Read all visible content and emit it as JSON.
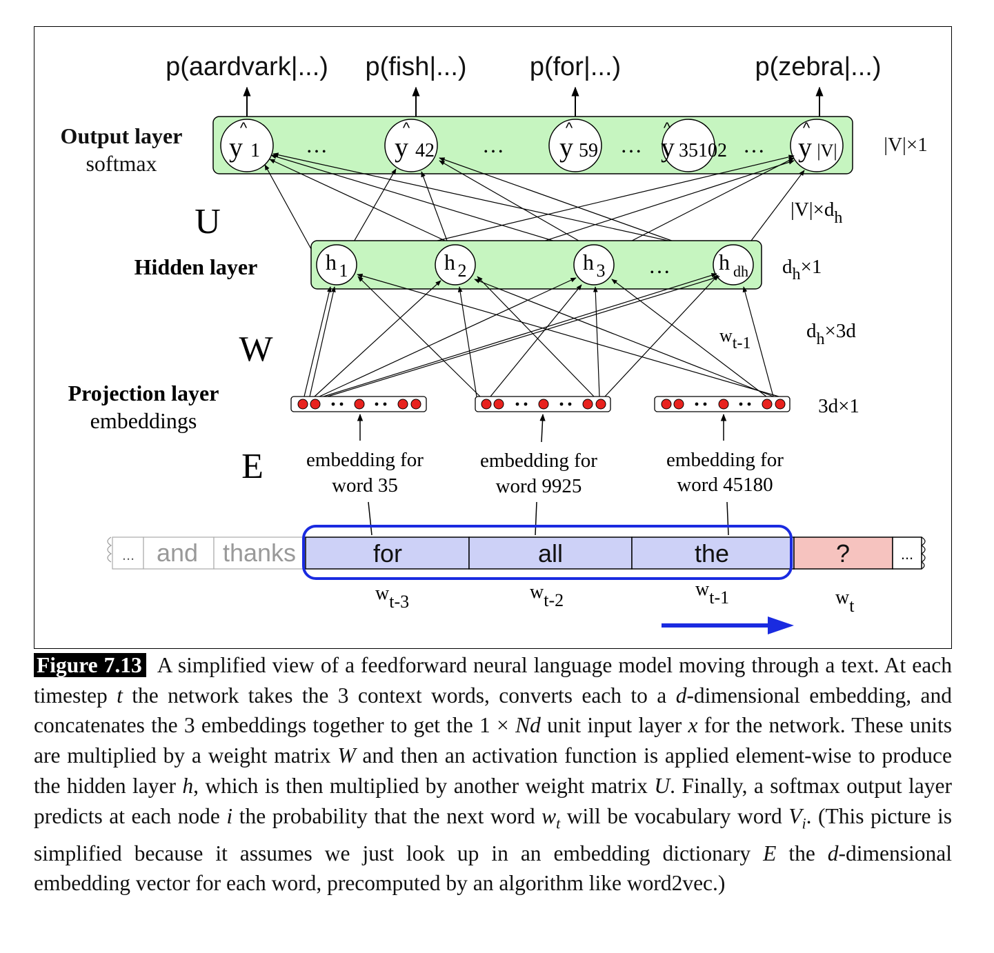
{
  "diagram": {
    "output_probs": [
      "p(aardvark|...)",
      "p(fish|...)",
      "p(for|...)",
      "p(zebra|...)"
    ],
    "output_layer": {
      "label": "Output layer",
      "sublabel": "softmax",
      "dim": "|V|×1",
      "nodes": [
        {
          "hat": "^",
          "base": "y",
          "sub": "1"
        },
        {
          "hat": "^",
          "base": "y",
          "sub": "42"
        },
        {
          "hat": "^",
          "base": "y",
          "sub": "59"
        },
        {
          "hat": "^",
          "base": "y",
          "sub": "35102"
        },
        {
          "hat": "^",
          "base": "y",
          "sub": "|V|"
        }
      ]
    },
    "U_matrix": {
      "letter": "U",
      "dim_base": "|V|×d",
      "dim_sub": "h"
    },
    "hidden_layer": {
      "label": "Hidden layer",
      "dim_base": "d",
      "dim_sub": "h",
      "dim_rest": "×1",
      "nodes": [
        {
          "base": "h",
          "sub": "1"
        },
        {
          "base": "h",
          "sub": "2"
        },
        {
          "base": "h",
          "sub": "3"
        },
        {
          "base": "h",
          "sub": "dh"
        }
      ]
    },
    "W_matrix": {
      "letter": "W",
      "dim_base": "d",
      "dim_sub": "h",
      "dim_rest": "×3d",
      "wt_base": "w",
      "wt_sub": "t-1"
    },
    "projection_layer": {
      "label": "Projection layer",
      "sublabel": "embeddings",
      "dim": "3d×1"
    },
    "E_matrix": {
      "letter": "E"
    },
    "embeddings": [
      {
        "line1": "embedding for",
        "line2": "word 35"
      },
      {
        "line1": "embedding for",
        "line2": "word 9925"
      },
      {
        "line1": "embedding for",
        "line2": "word 45180"
      }
    ],
    "dots": "…",
    "ellipsis": "...",
    "sequence": {
      "left_words": [
        "...",
        "and",
        "thanks"
      ],
      "context_words": [
        "for",
        "all",
        "the"
      ],
      "target": "?",
      "right_ellipsis": "...",
      "labels": [
        {
          "base": "w",
          "sub": "t-3"
        },
        {
          "base": "w",
          "sub": "t-2"
        },
        {
          "base": "w",
          "sub": "t-1"
        },
        {
          "base": "w",
          "sub": "t"
        }
      ]
    },
    "colors": {
      "layer_fill": "#c6f5c0",
      "embedding_dot": "#e8221e",
      "context_fill": "#cdd1f7",
      "target_fill": "#f6c3bf",
      "window_border": "#1a2be0",
      "arrow_blue": "#1a2be0"
    }
  },
  "caption": {
    "label": "Figure 7.13",
    "parts": [
      {
        "t": "A simplified view of a feedforward neural language model moving through a text.  At each timestep "
      },
      {
        "t": "t",
        "i": true
      },
      {
        "t": " the network takes the 3 context words, converts each to a "
      },
      {
        "t": "d",
        "i": true
      },
      {
        "t": "-dimensional embedding, and concatenates the 3 embeddings together to get the 1 × "
      },
      {
        "t": "Nd",
        "i": true
      },
      {
        "t": " unit input layer "
      },
      {
        "t": "x",
        "i": true
      },
      {
        "t": " for the network. These units are multiplied by a weight matrix "
      },
      {
        "t": "W",
        "i": true
      },
      {
        "t": " and then an activation function is applied element-wise to produce the hidden layer "
      },
      {
        "t": "h",
        "i": true
      },
      {
        "t": ", which is then multiplied by another weight matrix "
      },
      {
        "t": "U",
        "i": true
      },
      {
        "t": ". Finally, a softmax output layer predicts at each node "
      },
      {
        "t": "i",
        "i": true
      },
      {
        "t": " the probability that the next word "
      },
      {
        "t": "w",
        "i": true
      },
      {
        "t": "t",
        "i": true,
        "sub": true
      },
      {
        "t": " will be vocabulary word "
      },
      {
        "t": "V",
        "i": true
      },
      {
        "t": "i",
        "i": true,
        "sub": true
      },
      {
        "t": ". (This picture is simplified because it assumes we just look up in an embedding dictionary "
      },
      {
        "t": "E",
        "i": true
      },
      {
        "t": " the "
      },
      {
        "t": "d",
        "i": true
      },
      {
        "t": "-dimensional embedding vector for each word, precomputed by an algorithm like word2vec.)"
      }
    ]
  }
}
